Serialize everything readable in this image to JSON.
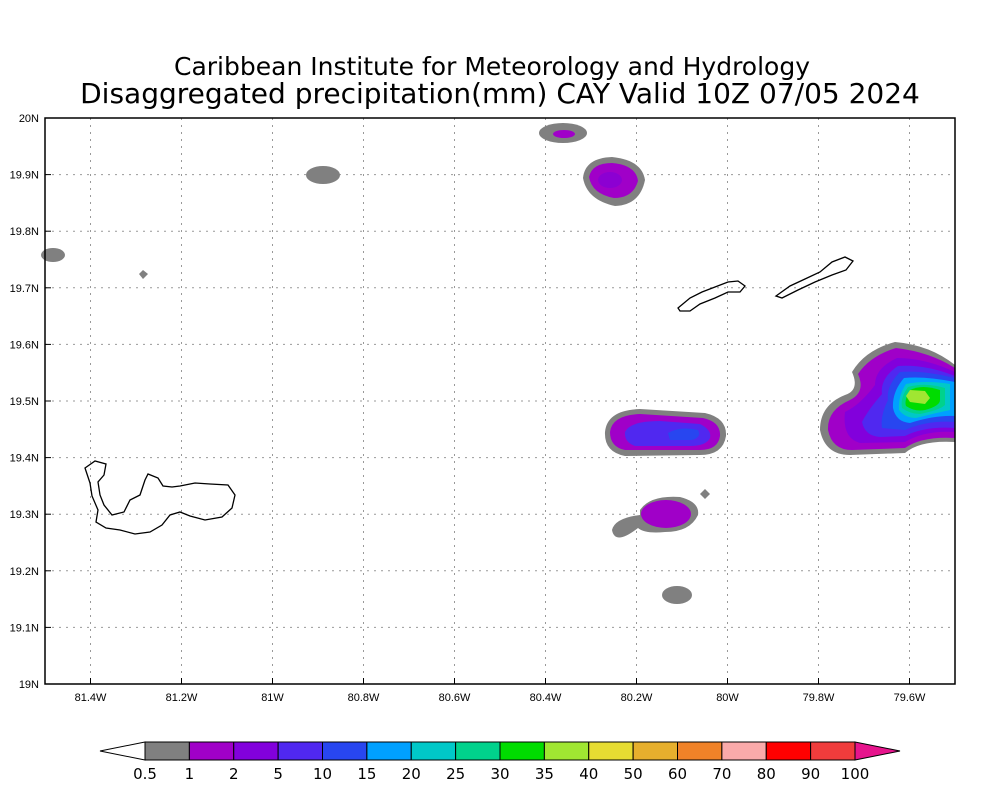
{
  "title": {
    "line1": "Caribbean Institute for Meteorology and Hydrology",
    "line2": "Disaggregated precipitation(mm) CAY Valid 10Z 07/05 2024"
  },
  "axes": {
    "lon_ticks": [
      {
        "value": -81.4,
        "label": "81.4W"
      },
      {
        "value": -81.2,
        "label": "81.2W"
      },
      {
        "value": -81.0,
        "label": "81W"
      },
      {
        "value": -80.8,
        "label": "80.8W"
      },
      {
        "value": -80.6,
        "label": "80.6W"
      },
      {
        "value": -80.4,
        "label": "80.4W"
      },
      {
        "value": -80.2,
        "label": "80.2W"
      },
      {
        "value": -80.0,
        "label": "80W"
      },
      {
        "value": -79.8,
        "label": "79.8W"
      },
      {
        "value": -79.6,
        "label": "79.6W"
      }
    ],
    "lat_ticks": [
      {
        "value": 20.0,
        "label": "20N"
      },
      {
        "value": 19.9,
        "label": "19.9N"
      },
      {
        "value": 19.8,
        "label": "19.8N"
      },
      {
        "value": 19.7,
        "label": "19.7N"
      },
      {
        "value": 19.6,
        "label": "19.6N"
      },
      {
        "value": 19.5,
        "label": "19.5N"
      },
      {
        "value": 19.4,
        "label": "19.4N"
      },
      {
        "value": 19.3,
        "label": "19.3N"
      },
      {
        "value": 19.2,
        "label": "19.2N"
      },
      {
        "value": 19.1,
        "label": "19.1N"
      },
      {
        "value": 19.0,
        "label": "19N"
      }
    ],
    "lon_range": [
      -81.5,
      -79.5
    ],
    "lat_range": [
      19.0,
      20.0
    ]
  },
  "colorbar": {
    "labels": [
      "0.5",
      "1",
      "2",
      "5",
      "10",
      "15",
      "20",
      "25",
      "30",
      "35",
      "40",
      "50",
      "60",
      "70",
      "80",
      "90",
      "100"
    ],
    "colors": [
      "#808080",
      "#a000c8",
      "#8200dc",
      "#5028f0",
      "#2846f0",
      "#00a0ff",
      "#00c8c8",
      "#00d28c",
      "#00dc00",
      "#a0e632",
      "#e6dc32",
      "#e6af2d",
      "#f08228",
      "#faaaaa",
      "#ff0000",
      "#f03c3c"
    ],
    "below_color": "#ffffff",
    "above_color": "#e6148c"
  }
}
